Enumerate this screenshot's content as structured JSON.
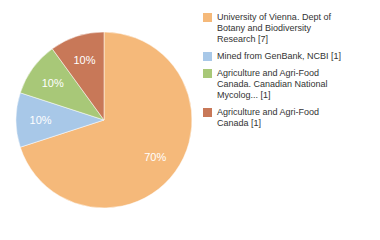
{
  "chart_data": {
    "type": "pie",
    "categories": [
      "University of Vienna. Dept of\nBotany and Biodiversity\nResearch [7]",
      "Mined from GenBank, NCBI [1]",
      "Agriculture and Agri-Food\nCanada. Canadian National\nMycolog... [1]",
      "Agriculture and Agri-Food\nCanada [1]"
    ],
    "values": [
      70,
      10,
      10,
      10
    ],
    "value_labels": [
      "70%",
      "10%",
      "10%",
      "10%"
    ],
    "colors": [
      "#f5b97a",
      "#a8c8e8",
      "#a8c878",
      "#c87858"
    ],
    "data_labels": true,
    "legend": "upper right"
  }
}
